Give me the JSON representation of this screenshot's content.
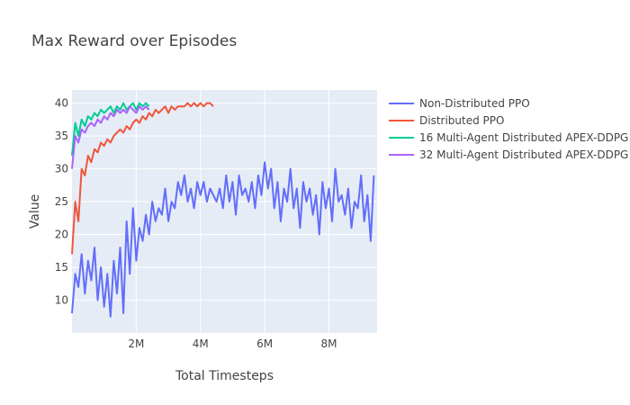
{
  "chart_data": {
    "type": "line",
    "title": "Max Reward over Episodes",
    "xlabel": "Total Timesteps",
    "ylabel": "Value",
    "xlim": [
      0,
      9500000
    ],
    "ylim": [
      5,
      42
    ],
    "x_ticks": [
      {
        "value": 2000000,
        "label": "2M"
      },
      {
        "value": 4000000,
        "label": "4M"
      },
      {
        "value": 6000000,
        "label": "6M"
      },
      {
        "value": 8000000,
        "label": "8M"
      }
    ],
    "y_ticks": [
      {
        "value": 10,
        "label": "10"
      },
      {
        "value": 15,
        "label": "15"
      },
      {
        "value": 20,
        "label": "20"
      },
      {
        "value": 25,
        "label": "25"
      },
      {
        "value": 30,
        "label": "30"
      },
      {
        "value": 35,
        "label": "35"
      },
      {
        "value": 40,
        "label": "40"
      }
    ],
    "grid": true,
    "legend_position": "right",
    "plot_background": "#e5ecf6",
    "series": [
      {
        "name": "Non-Distributed PPO",
        "color": "#636efa",
        "x": [
          0,
          100000,
          200000,
          300000,
          400000,
          500000,
          600000,
          700000,
          800000,
          900000,
          1000000,
          1100000,
          1200000,
          1300000,
          1400000,
          1500000,
          1600000,
          1700000,
          1800000,
          1900000,
          2000000,
          2100000,
          2200000,
          2300000,
          2400000,
          2500000,
          2600000,
          2700000,
          2800000,
          2900000,
          3000000,
          3100000,
          3200000,
          3300000,
          3400000,
          3500000,
          3600000,
          3700000,
          3800000,
          3900000,
          4000000,
          4100000,
          4200000,
          4300000,
          4400000,
          4500000,
          4600000,
          4700000,
          4800000,
          4900000,
          5000000,
          5100000,
          5200000,
          5300000,
          5400000,
          5500000,
          5600000,
          5700000,
          5800000,
          5900000,
          6000000,
          6100000,
          6200000,
          6300000,
          6400000,
          6500000,
          6600000,
          6700000,
          6800000,
          6900000,
          7000000,
          7100000,
          7200000,
          7300000,
          7400000,
          7500000,
          7600000,
          7700000,
          7800000,
          7900000,
          8000000,
          8100000,
          8200000,
          8300000,
          8400000,
          8500000,
          8600000,
          8700000,
          8800000,
          8900000,
          9000000,
          9100000,
          9200000,
          9300000,
          9400000
        ],
        "y": [
          8,
          14,
          12,
          17,
          11,
          16,
          13,
          18,
          10,
          15,
          9,
          14,
          7.5,
          16,
          11,
          18,
          8,
          22,
          14,
          24,
          16,
          21,
          19,
          23,
          20,
          25,
          22,
          24,
          23,
          27,
          22,
          25,
          24,
          28,
          26,
          29,
          25,
          27,
          24,
          28,
          26,
          28,
          25,
          27,
          26,
          25,
          27,
          24,
          29,
          25,
          28,
          23,
          29,
          26,
          27,
          25,
          28,
          24,
          29,
          26,
          31,
          27,
          30,
          24,
          28,
          22,
          27,
          25,
          30,
          24,
          27,
          21,
          28,
          25,
          27,
          23,
          26,
          20,
          28,
          24,
          27,
          22,
          30,
          25,
          26,
          23,
          27,
          21,
          25,
          24,
          29,
          22,
          26,
          19,
          29
        ]
      },
      {
        "name": "Distributed PPO",
        "color": "#ef553b",
        "x": [
          0,
          100000,
          200000,
          300000,
          400000,
          500000,
          600000,
          700000,
          800000,
          900000,
          1000000,
          1100000,
          1200000,
          1300000,
          1400000,
          1500000,
          1600000,
          1700000,
          1800000,
          1900000,
          2000000,
          2100000,
          2200000,
          2300000,
          2400000,
          2500000,
          2600000,
          2700000,
          2800000,
          2900000,
          3000000,
          3100000,
          3200000,
          3300000,
          3400000,
          3500000,
          3600000,
          3700000,
          3800000,
          3900000,
          4000000,
          4100000,
          4200000,
          4300000,
          4400000
        ],
        "y": [
          17,
          25,
          22,
          30,
          29,
          32,
          31,
          33,
          32.5,
          34,
          33.5,
          34.5,
          34,
          35,
          35.5,
          36,
          35.5,
          36.5,
          36,
          37,
          37.5,
          37,
          38,
          37.5,
          38.5,
          38,
          39,
          38.5,
          39,
          39.5,
          38.5,
          39.5,
          39,
          39.5,
          39.5,
          39.5,
          40,
          39.5,
          40,
          39.5,
          40,
          39.5,
          40,
          40,
          39.5
        ]
      },
      {
        "name": "16 Multi-Agent Distributed APEX-DDPG",
        "color": "#00cc96",
        "x": [
          0,
          100000,
          200000,
          300000,
          400000,
          500000,
          600000,
          700000,
          800000,
          900000,
          1000000,
          1100000,
          1200000,
          1300000,
          1400000,
          1500000,
          1600000,
          1700000,
          1800000,
          1900000,
          2000000,
          2100000,
          2200000,
          2300000,
          2400000
        ],
        "y": [
          32,
          37,
          35,
          37.5,
          36.5,
          38,
          37.5,
          38.5,
          38,
          39,
          38.5,
          39,
          39.5,
          38.5,
          39.5,
          39,
          40,
          39,
          39.5,
          40,
          39,
          40,
          39.5,
          40,
          39.5
        ]
      },
      {
        "name": "32 Multi-Agent Distributed APEX-DDPG",
        "color": "#ab63fa",
        "x": [
          0,
          100000,
          200000,
          300000,
          400000,
          500000,
          600000,
          700000,
          800000,
          900000,
          1000000,
          1100000,
          1200000,
          1300000,
          1400000,
          1500000,
          1600000,
          1700000,
          1800000,
          1900000,
          2000000,
          2100000,
          2200000,
          2300000,
          2400000
        ],
        "y": [
          30,
          35,
          34,
          36,
          35.5,
          36.5,
          37,
          36.5,
          37.5,
          37,
          38,
          37.5,
          38.5,
          38,
          39,
          38.5,
          39,
          38.5,
          39.5,
          39,
          38.5,
          39.5,
          39,
          39.5,
          39
        ]
      }
    ]
  }
}
